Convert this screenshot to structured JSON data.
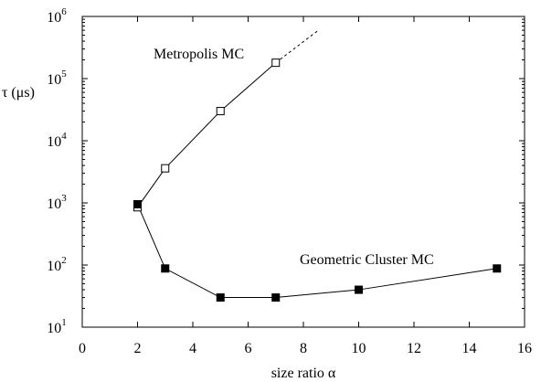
{
  "chart_data": {
    "type": "scatter",
    "xlabel": "size ratio α",
    "ylabel": "τ (μs)",
    "x_scale": "linear",
    "y_scale": "log",
    "xlim": [
      0,
      16
    ],
    "ylim": [
      10,
      1000000
    ],
    "x_ticks": [
      0,
      2,
      4,
      6,
      8,
      10,
      12,
      14,
      16
    ],
    "y_ticks": [
      {
        "value": 10,
        "base": "10",
        "exp": "1"
      },
      {
        "value": 100,
        "base": "10",
        "exp": "2"
      },
      {
        "value": 1000,
        "base": "10",
        "exp": "3"
      },
      {
        "value": 10000,
        "base": "10",
        "exp": "4"
      },
      {
        "value": 100000,
        "base": "10",
        "exp": "5"
      },
      {
        "value": 1000000,
        "base": "10",
        "exp": "6"
      }
    ],
    "grid": false,
    "series": [
      {
        "name": "Metropolis MC",
        "marker": "open-square",
        "line": "solid",
        "x": [
          2,
          3,
          5,
          7
        ],
        "y": [
          850,
          3600,
          30000,
          180000
        ],
        "extrapolation": {
          "line": "dashed",
          "x": [
            7,
            8.5
          ],
          "y": [
            180000,
            580000
          ]
        }
      },
      {
        "name": "Geometric Cluster MC",
        "marker": "filled-square",
        "line": "solid",
        "x": [
          2,
          3,
          5,
          7,
          10,
          15
        ],
        "y": [
          950,
          88,
          30,
          30,
          40,
          88
        ]
      }
    ]
  }
}
